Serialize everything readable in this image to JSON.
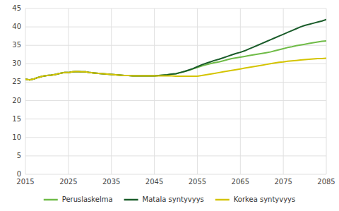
{
  "chart_data": {
    "type": "line",
    "x": [
      2015,
      2016,
      2017,
      2018,
      2019,
      2020,
      2021,
      2022,
      2023,
      2024,
      2025,
      2026,
      2027,
      2028,
      2029,
      2030,
      2031,
      2032,
      2033,
      2034,
      2035,
      2036,
      2037,
      2038,
      2039,
      2040,
      2041,
      2042,
      2043,
      2044,
      2045,
      2046,
      2047,
      2048,
      2049,
      2050,
      2051,
      2052,
      2053,
      2054,
      2055,
      2056,
      2057,
      2058,
      2059,
      2060,
      2061,
      2062,
      2063,
      2064,
      2065,
      2066,
      2067,
      2068,
      2069,
      2070,
      2071,
      2072,
      2073,
      2074,
      2075,
      2076,
      2077,
      2078,
      2079,
      2080,
      2081,
      2082,
      2083,
      2084,
      2085
    ],
    "series": [
      {
        "name": "Peruslaskelma",
        "color": "#6fbb47",
        "values": [
          25.8,
          25.6,
          25.9,
          26.3,
          26.6,
          26.8,
          26.9,
          27.1,
          27.4,
          27.6,
          27.6,
          27.8,
          27.9,
          27.8,
          27.8,
          27.6,
          27.5,
          27.4,
          27.3,
          27.2,
          27.1,
          27.0,
          26.9,
          26.8,
          26.8,
          26.7,
          26.7,
          26.7,
          26.7,
          26.7,
          26.7,
          26.8,
          26.9,
          27.0,
          27.2,
          27.3,
          27.6,
          27.9,
          28.2,
          28.6,
          29.0,
          29.4,
          29.7,
          30.0,
          30.3,
          30.5,
          30.8,
          31.1,
          31.4,
          31.6,
          31.8,
          32.0,
          32.2,
          32.4,
          32.6,
          32.8,
          33.0,
          33.2,
          33.5,
          33.8,
          34.1,
          34.4,
          34.6,
          34.9,
          35.1,
          35.3,
          35.5,
          35.7,
          35.9,
          36.1,
          36.2
        ]
      },
      {
        "name": "Matala syntyvyys",
        "color": "#1a5c2a",
        "values": [
          25.8,
          25.6,
          25.9,
          26.3,
          26.6,
          26.8,
          26.9,
          27.1,
          27.4,
          27.6,
          27.6,
          27.8,
          27.9,
          27.8,
          27.8,
          27.6,
          27.5,
          27.4,
          27.3,
          27.2,
          27.1,
          27.0,
          26.9,
          26.8,
          26.8,
          26.7,
          26.7,
          26.7,
          26.7,
          26.7,
          26.7,
          26.8,
          26.9,
          27.0,
          27.2,
          27.3,
          27.6,
          27.9,
          28.3,
          28.7,
          29.2,
          29.7,
          30.1,
          30.5,
          30.9,
          31.2,
          31.6,
          32.0,
          32.4,
          32.8,
          33.1,
          33.5,
          34.0,
          34.5,
          35.0,
          35.5,
          36.0,
          36.5,
          37.0,
          37.5,
          38.0,
          38.5,
          39.0,
          39.5,
          40.0,
          40.4,
          40.7,
          41.0,
          41.3,
          41.6,
          42.0
        ]
      },
      {
        "name": "Korkea syntyvyys",
        "color": "#d4c400",
        "values": [
          25.8,
          25.6,
          25.9,
          26.3,
          26.6,
          26.8,
          26.9,
          27.1,
          27.4,
          27.6,
          27.6,
          27.8,
          27.9,
          27.8,
          27.8,
          27.6,
          27.5,
          27.4,
          27.3,
          27.2,
          27.1,
          27.0,
          26.9,
          26.8,
          26.8,
          26.7,
          26.7,
          26.7,
          26.7,
          26.7,
          26.7,
          26.7,
          26.7,
          26.7,
          26.7,
          26.6,
          26.6,
          26.6,
          26.6,
          26.6,
          26.6,
          26.8,
          27.0,
          27.2,
          27.4,
          27.6,
          27.8,
          28.0,
          28.2,
          28.4,
          28.6,
          28.8,
          29.0,
          29.2,
          29.4,
          29.6,
          29.8,
          30.0,
          30.2,
          30.4,
          30.5,
          30.7,
          30.8,
          30.9,
          31.0,
          31.1,
          31.2,
          31.3,
          31.4,
          31.4,
          31.5
        ]
      }
    ],
    "xlim": [
      2015,
      2085
    ],
    "xticks": [
      2015,
      2025,
      2035,
      2045,
      2055,
      2065,
      2075,
      2085
    ],
    "ylim": [
      0,
      45
    ],
    "yticks": [
      0,
      5,
      10,
      15,
      20,
      25,
      30,
      35,
      40,
      45
    ],
    "grid": true,
    "legend": "bottom"
  }
}
